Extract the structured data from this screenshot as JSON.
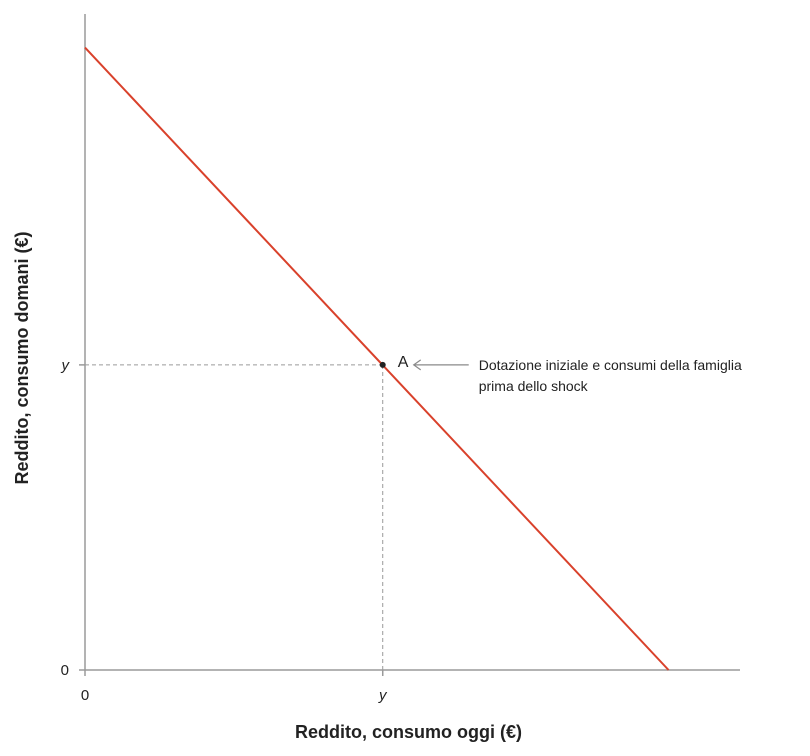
{
  "chart_data": {
    "type": "line",
    "title": "",
    "xlabel": "Reddito, consumo oggi (€)",
    "ylabel": "Reddito, consumo domani (€)",
    "x_ticks": [
      {
        "value": 0,
        "label": "0",
        "italic": false
      },
      {
        "value": 1,
        "label": "y",
        "italic": true
      }
    ],
    "y_ticks": [
      {
        "value": 0,
        "label": "0",
        "italic": false
      },
      {
        "value": 1,
        "label": "y",
        "italic": true
      }
    ],
    "xlim": [
      0,
      2.2
    ],
    "ylim": [
      0,
      2.15
    ],
    "grid": false,
    "series": [
      {
        "color": "#d9412b",
        "x": [
          0,
          1.96
        ],
        "y": [
          2.04,
          0
        ]
      }
    ],
    "points": [
      {
        "label": "A",
        "x": 1,
        "y": 1
      }
    ],
    "guides": [
      {
        "from": [
          0,
          1
        ],
        "to": [
          1,
          1
        ]
      },
      {
        "from": [
          1,
          0
        ],
        "to": [
          1,
          1
        ]
      }
    ],
    "annotations": [
      {
        "target": "A",
        "lines": [
          "Dotazione iniziale e consumi della famiglia",
          "prima dello shock"
        ]
      }
    ]
  }
}
